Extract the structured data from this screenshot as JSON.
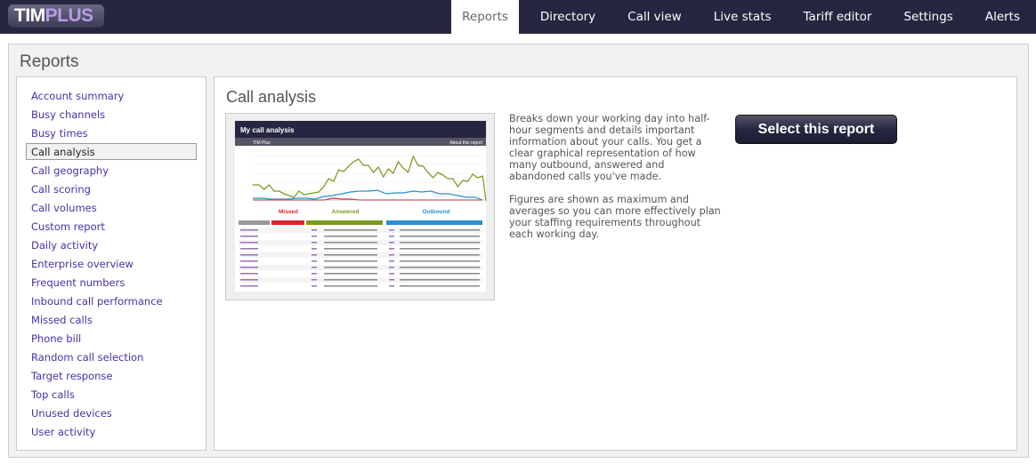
{
  "logo": {
    "part1": "TIM",
    "part2": "PLUS"
  },
  "nav": [
    "Reports",
    "Directory",
    "Call view",
    "Live stats",
    "Tariff editor",
    "Settings",
    "Alerts"
  ],
  "nav_active": "Reports",
  "page_title": "Reports",
  "sidebar": [
    "Account summary",
    "Busy channels",
    "Busy times",
    "Call analysis",
    "Call geography",
    "Call scoring",
    "Call volumes",
    "Custom report",
    "Daily activity",
    "Enterprise overview",
    "Frequent numbers",
    "Inbound call performance",
    "Missed calls",
    "Phone bill",
    "Random call selection",
    "Target response",
    "Top calls",
    "Unused devices",
    "User activity"
  ],
  "sidebar_active": "Call analysis",
  "report": {
    "title": "Call analysis",
    "description": [
      "Breaks down your working day into half-hour segments and details important information about your calls. You get a clear graphical representation of how many outbound, answered and abandoned calls you've made.",
      "Figures are shown as maximum and averages so you can more effectively plan your staffing requirements throughout each working day."
    ],
    "select_button": "Select this report"
  },
  "thumbnail": {
    "title": "My call analysis",
    "breadcrumb": "TIM Plus",
    "about": "About this report",
    "missed": "Missed",
    "answered": "Answered",
    "outbound": "Outbound",
    "colors": {
      "missed": "#d9262e",
      "answered": "#7a9a1e",
      "outbound": "#2a8fd0"
    }
  }
}
